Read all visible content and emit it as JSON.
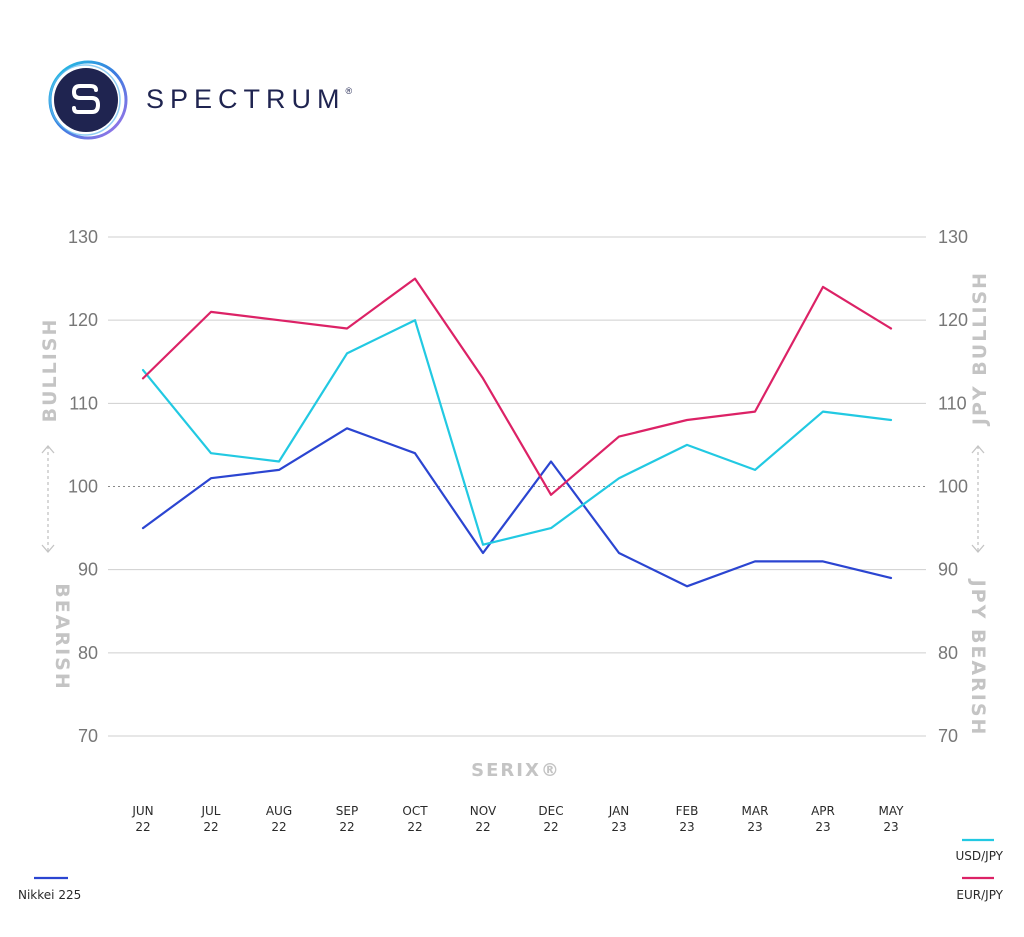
{
  "brand": {
    "name": "SPECTRUM",
    "mark": "®",
    "logo_icon": "spectrum-s-logo-icon"
  },
  "chart_data": {
    "type": "line",
    "categories": [
      [
        "JUN",
        "22"
      ],
      [
        "JUL",
        "22"
      ],
      [
        "AUG",
        "22"
      ],
      [
        "SEP",
        "22"
      ],
      [
        "OCT",
        "22"
      ],
      [
        "NOV",
        "22"
      ],
      [
        "DEC",
        "22"
      ],
      [
        "JAN",
        "23"
      ],
      [
        "FEB",
        "23"
      ],
      [
        "MAR",
        "23"
      ],
      [
        "APR",
        "23"
      ],
      [
        "MAY",
        "23"
      ]
    ],
    "xlabel": "SERIX®",
    "left_axis": {
      "ticks": [
        130,
        120,
        110,
        100,
        90,
        80,
        70
      ],
      "ylim": [
        70,
        130
      ],
      "label_top": "BULLISH",
      "label_bottom": "BEARISH"
    },
    "right_axis": {
      "ticks": [
        70,
        80,
        90,
        100,
        110,
        120,
        130
      ],
      "ylim": [
        130,
        70
      ],
      "inverted": true,
      "label_top": "JPY BULLISH",
      "label_bottom": "JPY BEARISH"
    },
    "reference_line": 100,
    "series": [
      {
        "name": "Nikkei 225",
        "color": "#2b45d1",
        "values": [
          95,
          101,
          102,
          107,
          104,
          92,
          103,
          92,
          88,
          91,
          91,
          89
        ]
      },
      {
        "name": "USD/JPY",
        "color": "#22c9e2",
        "values": [
          114,
          104,
          103,
          116,
          120,
          93,
          95,
          101,
          105,
          102,
          109,
          108
        ]
      },
      {
        "name": "EUR/JPY",
        "color": "#dc2266",
        "values": [
          113,
          121,
          120,
          119,
          125,
          113,
          99,
          106,
          108,
          109,
          124,
          119
        ]
      }
    ],
    "legend": {
      "left": [
        "Nikkei 225"
      ],
      "right": [
        "USD/JPY",
        "EUR/JPY"
      ]
    }
  }
}
